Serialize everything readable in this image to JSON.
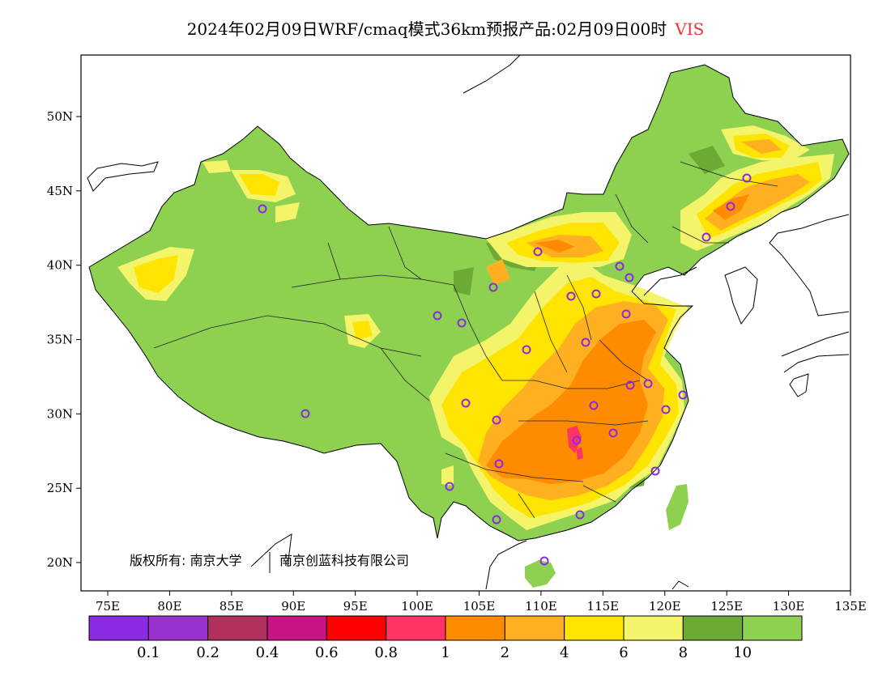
{
  "title": {
    "text": "2024年02月09日WRF/cmaq模式36km预报产品:02月09日00时",
    "variable": "VIS"
  },
  "copyright": {
    "prefix": "版权所有: 南京大学",
    "company": "南京创蓝科技有限公司"
  },
  "map_data": {
    "lon_ticks": [
      "75E",
      "80E",
      "85E",
      "90E",
      "95E",
      "100E",
      "105E",
      "110E",
      "115E",
      "120E",
      "125E",
      "130E",
      "135E"
    ],
    "lat_ticks": [
      "50N",
      "45N",
      "40N",
      "35N",
      "30N",
      "25N",
      "20N"
    ],
    "colorbar": {
      "colors": [
        "#8a2be2",
        "#9932cc",
        "#b03060",
        "#c71585",
        "#ff0000",
        "#ff3366",
        "#ff8c00",
        "#ffb020",
        "#ffe400",
        "#f4f46a",
        "#6aaa35",
        "#8ed050"
      ],
      "labels": [
        "0.1",
        "0.2",
        "0.4",
        "0.6",
        "0.8",
        "1",
        "2",
        "4",
        "6",
        "8",
        "10"
      ]
    },
    "colors": {
      "good_vis": "#8ed050",
      "mid_green": "#6aaa35",
      "light_yellow": "#f4f46a",
      "yellow": "#ffe400",
      "orange_light": "#ffb020",
      "orange": "#ff8c00",
      "red_pink": "#ff3366",
      "station_marker": "#8a2be2"
    }
  }
}
